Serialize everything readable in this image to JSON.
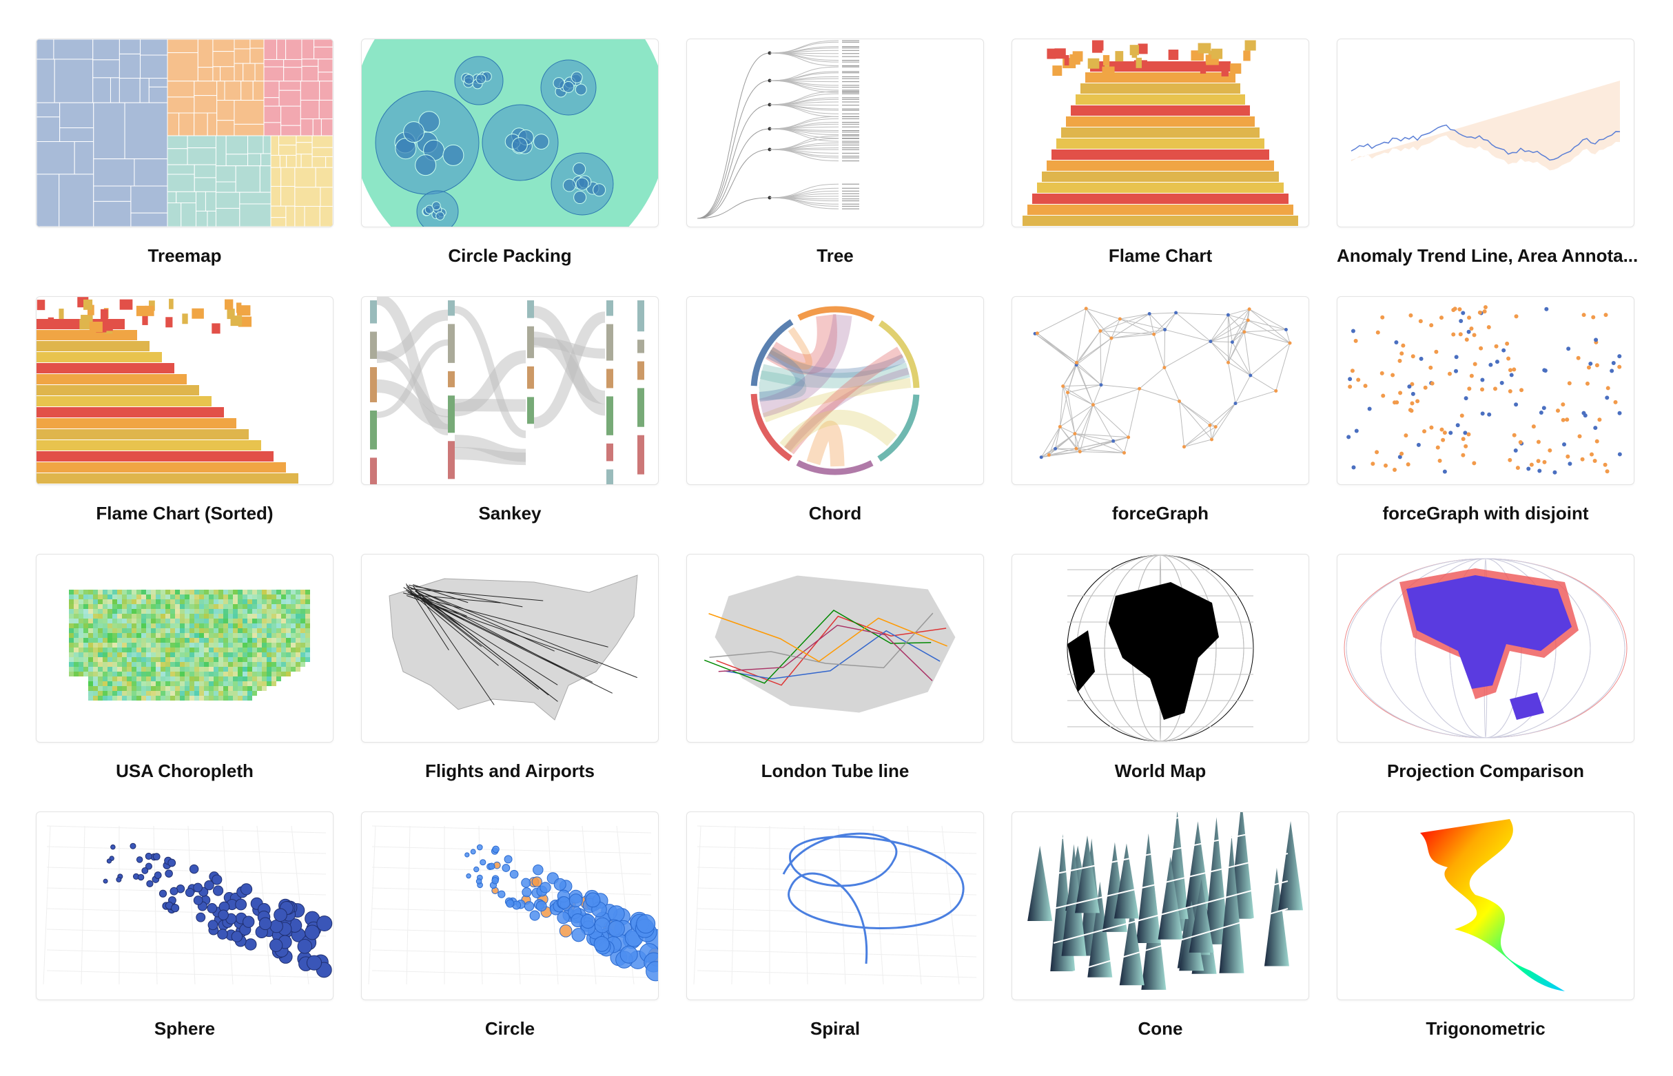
{
  "items": [
    {
      "title": "Treemap"
    },
    {
      "title": "Circle Packing"
    },
    {
      "title": "Tree"
    },
    {
      "title": "Flame Chart"
    },
    {
      "title": "Anomaly Trend Line, Area Annota..."
    },
    {
      "title": "Flame Chart (Sorted)"
    },
    {
      "title": "Sankey"
    },
    {
      "title": "Chord"
    },
    {
      "title": "forceGraph"
    },
    {
      "title": "forceGraph with disjoint"
    },
    {
      "title": "USA Choropleth"
    },
    {
      "title": "Flights and Airports"
    },
    {
      "title": "London Tube line"
    },
    {
      "title": "World Map"
    },
    {
      "title": "Projection Comparison"
    },
    {
      "title": "Sphere"
    },
    {
      "title": "Circle"
    },
    {
      "title": "Spiral"
    },
    {
      "title": "Cone"
    },
    {
      "title": "Trigonometric"
    }
  ]
}
